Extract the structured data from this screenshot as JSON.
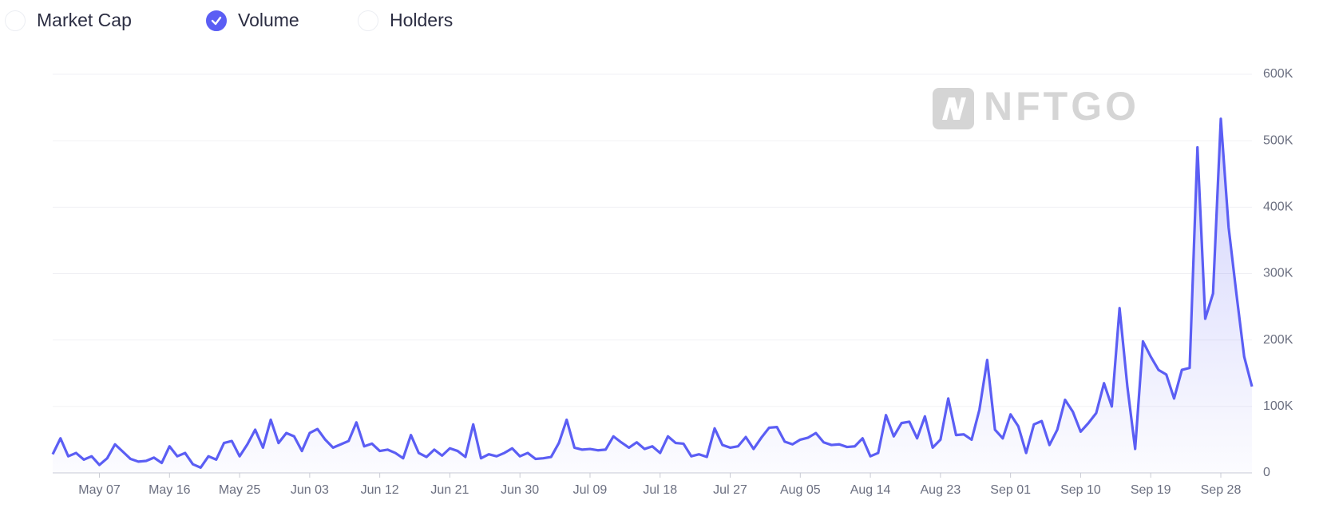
{
  "chart_data": {
    "type": "area-line",
    "toggles": [
      {
        "label": "Market Cap",
        "checked": false
      },
      {
        "label": "Volume",
        "checked": true
      },
      {
        "label": "Holders",
        "checked": false
      }
    ],
    "watermark": "NFTGO",
    "categories": [
      null,
      null,
      null,
      null,
      null,
      null,
      "May 07",
      null,
      null,
      null,
      null,
      null,
      null,
      null,
      null,
      "May 16",
      null,
      null,
      null,
      null,
      null,
      null,
      null,
      null,
      "May 25",
      null,
      null,
      null,
      null,
      null,
      null,
      null,
      null,
      "Jun 03",
      null,
      null,
      null,
      null,
      null,
      null,
      null,
      null,
      "Jun 12",
      null,
      null,
      null,
      null,
      null,
      null,
      null,
      null,
      "Jun 21",
      null,
      null,
      null,
      null,
      null,
      null,
      null,
      null,
      "Jun 30",
      null,
      null,
      null,
      null,
      null,
      null,
      null,
      null,
      "Jul 09",
      null,
      null,
      null,
      null,
      null,
      null,
      null,
      null,
      "Jul 18",
      null,
      null,
      null,
      null,
      null,
      null,
      null,
      null,
      "Jul 27",
      null,
      null,
      null,
      null,
      null,
      null,
      null,
      null,
      "Aug 05",
      null,
      null,
      null,
      null,
      null,
      null,
      null,
      null,
      "Aug 14",
      null,
      null,
      null,
      null,
      null,
      null,
      null,
      null,
      "Aug 23",
      null,
      null,
      null,
      null,
      null,
      null,
      null,
      null,
      "Sep 01",
      null,
      null,
      null,
      null,
      null,
      null,
      null,
      null,
      "Sep 10",
      null,
      null,
      null,
      null,
      null,
      null,
      null,
      null,
      "Sep 19",
      null,
      null,
      null,
      null,
      null,
      null,
      null,
      null,
      "Sep 28",
      null,
      null,
      null,
      null
    ],
    "series": [
      {
        "color": "#5b5ef4",
        "values": [
          28000,
          52000,
          25000,
          30000,
          20000,
          25000,
          12000,
          22000,
          43000,
          32000,
          21000,
          17000,
          18000,
          23000,
          15000,
          40000,
          25000,
          30000,
          13000,
          8000,
          25000,
          20000,
          45000,
          48000,
          25000,
          43000,
          65000,
          38000,
          80000,
          45000,
          60000,
          55000,
          33000,
          60000,
          66000,
          50000,
          38000,
          43000,
          48000,
          76000,
          40000,
          44000,
          33000,
          35000,
          30000,
          22000,
          57000,
          30000,
          24000,
          35000,
          26000,
          37000,
          33000,
          24000,
          73000,
          22000,
          28000,
          25000,
          30000,
          37000,
          25000,
          30000,
          21000,
          22000,
          24000,
          45000,
          80000,
          38000,
          35000,
          36000,
          34000,
          35000,
          55000,
          46000,
          38000,
          46000,
          36000,
          40000,
          30000,
          55000,
          45000,
          44000,
          25000,
          28000,
          24000,
          67000,
          42000,
          38000,
          40000,
          54000,
          36000,
          53000,
          68000,
          69000,
          47000,
          43000,
          50000,
          53000,
          60000,
          46000,
          42000,
          43000,
          39000,
          40000,
          52000,
          25000,
          30000,
          87000,
          55000,
          75000,
          77000,
          52000,
          85000,
          38000,
          50000,
          112000,
          57000,
          58000,
          50000,
          95000,
          170000,
          65000,
          52000,
          88000,
          70000,
          30000,
          73000,
          78000,
          42000,
          65000,
          110000,
          92000,
          62000,
          75000,
          90000,
          135000,
          100000,
          248000,
          130000,
          36000,
          198000,
          175000,
          155000,
          148000,
          112000,
          155000,
          158000,
          490000,
          232000,
          270000,
          533000,
          370000,
          270000,
          175000,
          130000
        ]
      }
    ],
    "ylim": [
      0,
      600000
    ],
    "yticks": [
      0,
      {
        "value": 100000,
        "label": "100K"
      },
      {
        "value": 200000,
        "label": "200K"
      },
      {
        "value": 300000,
        "label": "300K"
      },
      {
        "value": 400000,
        "label": "400K"
      },
      {
        "value": 500000,
        "label": "500K"
      },
      {
        "value": 600000,
        "label": "600K"
      }
    ],
    "grid": true
  }
}
